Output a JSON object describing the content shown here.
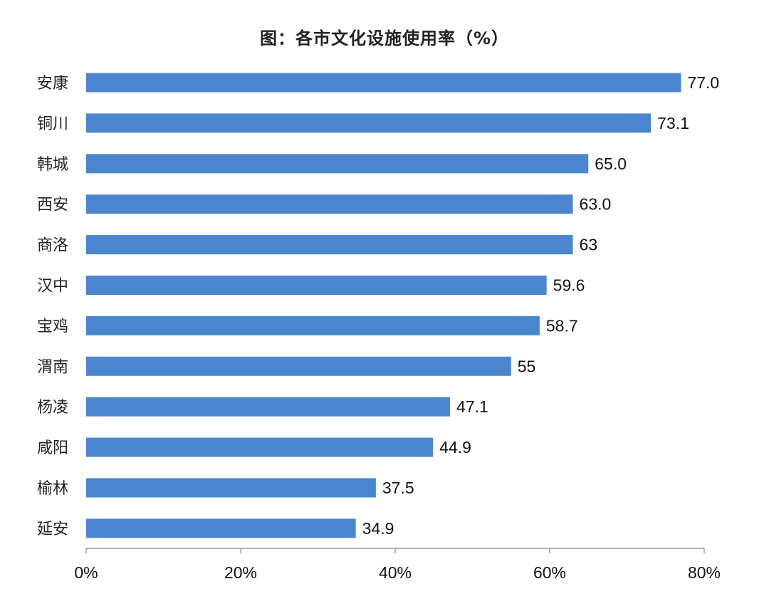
{
  "chart_data": {
    "type": "bar",
    "orientation": "horizontal",
    "title": "图：各市文化设施使用率（%）",
    "categories": [
      "安康",
      "铜川",
      "韩城",
      "西安",
      "商洛",
      "汉中",
      "宝鸡",
      "渭南",
      "杨凌",
      "咸阳",
      "榆林",
      "延安"
    ],
    "values": [
      77.0,
      73.1,
      65.0,
      63.0,
      63,
      59.6,
      58.7,
      55,
      47.1,
      44.9,
      37.5,
      34.9
    ],
    "value_labels": [
      "77.0",
      "73.1",
      "65.0",
      "63.0",
      "63",
      "59.6",
      "58.7",
      "55",
      "47.1",
      "44.9",
      "37.5",
      "34.9"
    ],
    "xlim": [
      0,
      80
    ],
    "x_ticks": [
      0,
      20,
      40,
      60,
      80
    ],
    "x_tick_labels": [
      "0%",
      "20%",
      "40%",
      "60%",
      "80%"
    ],
    "xlabel": "",
    "ylabel": "",
    "grid": false,
    "bar_color": "#4a86cf"
  }
}
